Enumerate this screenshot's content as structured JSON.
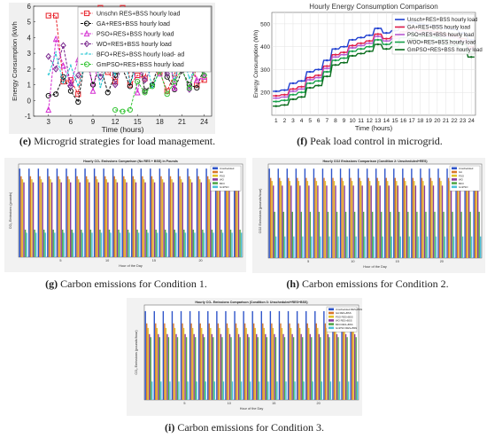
{
  "captions": {
    "e": {
      "tag": "(e)",
      "text": "Microgrid strategies for load management."
    },
    "f": {
      "tag": "(f)",
      "text": "Peak load control in microgrid."
    },
    "g": {
      "tag": "(g)",
      "text": "Carbon emissions for Condition 1."
    },
    "h": {
      "tag": "(h)",
      "text": "Carbon emissions for Condition 2."
    },
    "i": {
      "tag": "(i)",
      "text": "Carbon emissions for Condition 3."
    }
  },
  "chart_data": [
    {
      "id": "e",
      "type": "line",
      "xlabel": "Time (hours)",
      "ylabel": "Energy Consumption (kWh",
      "xlim": [
        1,
        25
      ],
      "ylim": [
        -1,
        6
      ],
      "xticks": [
        3,
        6,
        9,
        12,
        15,
        18,
        21,
        24
      ],
      "yticks": [
        -1,
        0,
        1,
        2,
        3,
        4,
        5,
        6
      ],
      "legend_position": "top-right",
      "x": [
        3,
        4,
        5,
        6,
        7,
        8,
        9,
        10,
        11,
        12,
        13,
        14,
        15,
        16,
        17,
        18,
        19,
        20,
        21,
        22,
        23,
        24
      ],
      "series": [
        {
          "name": "Unschn RES+BSS hourly load",
          "color": "#e8222a",
          "marker": "square",
          "values": [
            5.4,
            5.4,
            1.2,
            1.3,
            0.4,
            4.2,
            5.3,
            5.9,
            1.8,
            1.2,
            5.9,
            1.0,
            1.6,
            1.4,
            4.1,
            1.8,
            0.6,
            1.7,
            2.5,
            4.2,
            1.0,
            1.3
          ]
        },
        {
          "name": "GA+RES+BSS hourly load",
          "color": "#111111",
          "marker": "circle",
          "values": [
            0.3,
            0.4,
            1.5,
            0.6,
            -0.1,
            2.8,
            1.0,
            2.2,
            0.5,
            1.6,
            2.0,
            0.9,
            3.2,
            0.6,
            1.0,
            2.5,
            1.5,
            0.7,
            1.9,
            1.0,
            0.8,
            2.1
          ]
        },
        {
          "name": "PSO+RES+BSS hourly load",
          "color": "#d42fd1",
          "marker": "triangle",
          "values": [
            -0.6,
            3.9,
            2.2,
            1.1,
            2.6,
            3.7,
            0.6,
            3.3,
            4.6,
            5.3,
            4.9,
            3.4,
            0.5,
            3.3,
            2.4,
            1.7,
            3.6,
            0.8,
            4.2,
            2.2,
            1.3,
            1.5
          ]
        },
        {
          "name": "WO+RES+BSS hourly load",
          "color": "#7b2a8f",
          "marker": "diamond",
          "values": [
            2.8,
            2.0,
            3.5,
            0.9,
            1.6,
            2.7,
            2.6,
            1.5,
            3.3,
            1.0,
            2.3,
            2.0,
            2.8,
            1.3,
            2.1,
            3.2,
            1.7,
            2.6,
            2.0,
            0.7,
            2.9,
            1.6
          ]
        },
        {
          "name": "BFO+RES+BSS hourly load- ad",
          "color": "#19c3d0",
          "marker": "star",
          "values": [
            1.6,
            3.0,
            1.1,
            2.2,
            0.9,
            2.4,
            3.9,
            0.8,
            2.6,
            1.6,
            3.3,
            1.1,
            2.2,
            2.9,
            0.8,
            1.9,
            2.7,
            1.3,
            3.0,
            1.4,
            2.1,
            3.3
          ]
        },
        {
          "name": "GmPSO+RES+BSS hourly load",
          "color": "#33c433",
          "marker": "circle",
          "values": [
            null,
            null,
            null,
            null,
            null,
            null,
            null,
            null,
            null,
            -0.6,
            -0.7,
            -0.6,
            1.2,
            0.5,
            0.9,
            1.9,
            0.4,
            1.2,
            2.0,
            0.8,
            2.3,
            1.6
          ]
        }
      ]
    },
    {
      "id": "f",
      "type": "line",
      "title": "Hourly Energy Consumption Comparison",
      "xlabel": "Time (hours)",
      "ylabel": "Energy Consumption (Wh)",
      "xlim": [
        0.5,
        24.5
      ],
      "ylim": [
        100,
        550
      ],
      "xticks": [
        1,
        2,
        3,
        4,
        5,
        6,
        7,
        8,
        9,
        10,
        11,
        12,
        13,
        14,
        15,
        16,
        17,
        18,
        19,
        20,
        21,
        22,
        23,
        24
      ],
      "yticks": [
        200,
        300,
        400,
        500
      ],
      "legend_position": "top-right",
      "grid": true,
      "x": [
        1,
        2,
        3,
        4,
        5,
        6,
        7,
        8,
        9,
        10,
        11,
        12,
        13,
        14,
        15,
        16,
        17,
        18,
        19,
        20,
        21,
        22,
        23,
        24
      ],
      "series": [
        {
          "name": "Unsch+RES+BSS hourly load",
          "color": "#1f3fd0",
          "values": [
            205,
            210,
            240,
            250,
            290,
            300,
            340,
            390,
            400,
            430,
            440,
            450,
            480,
            460,
            470,
            490,
            505,
            500,
            495,
            490,
            480,
            475,
            460,
            430
          ]
        },
        {
          "name": "GA+RES+BSS hourly load",
          "color": "#e01b48",
          "values": [
            185,
            190,
            215,
            225,
            265,
            275,
            315,
            365,
            375,
            405,
            415,
            425,
            455,
            435,
            445,
            465,
            480,
            470,
            470,
            465,
            455,
            450,
            435,
            400
          ]
        },
        {
          "name": "PSO+RES+BSS hourly load",
          "color": "#b75ad1",
          "values": [
            175,
            180,
            205,
            215,
            255,
            265,
            305,
            355,
            365,
            395,
            405,
            415,
            445,
            425,
            435,
            455,
            470,
            460,
            460,
            455,
            445,
            440,
            425,
            390
          ]
        },
        {
          "name": "WOO+RES+BSS hourly load",
          "color": "#16a04a",
          "values": [
            160,
            165,
            190,
            200,
            240,
            250,
            290,
            340,
            350,
            380,
            390,
            400,
            430,
            410,
            420,
            440,
            455,
            445,
            445,
            440,
            430,
            425,
            410,
            375
          ]
        },
        {
          "name": "GmPSO+RES+BSS hourly load",
          "color": "#0b6d1e",
          "values": [
            140,
            145,
            170,
            180,
            220,
            230,
            270,
            320,
            330,
            360,
            370,
            380,
            410,
            390,
            400,
            420,
            435,
            425,
            425,
            420,
            410,
            405,
            390,
            355
          ]
        }
      ]
    },
    {
      "id": "g",
      "type": "bar",
      "title": "Hourly CO₂ Emissions Comparison (No RES + BSS) in Pounds",
      "xlabel": "Hour of the Day",
      "ylabel": "CO₂ Emissions (pounds)",
      "xticks": [
        5,
        10,
        15,
        20
      ],
      "legend_position": "top-right",
      "categories": [
        1,
        2,
        3,
        4,
        5,
        6,
        7,
        8,
        9,
        10,
        11,
        12,
        13,
        14,
        15,
        16,
        17,
        18,
        19,
        20,
        21,
        22,
        23,
        24
      ],
      "series_values": [
        {
          "name": "Unscheduled",
          "color": "#2e54c9",
          "value": 290
        },
        {
          "name": "GA",
          "color": "#d9782a",
          "value": 265
        },
        {
          "name": "PSO",
          "color": "#e3c22a",
          "value": 255
        },
        {
          "name": "WO",
          "color": "#8c3a9c",
          "value": 245
        },
        {
          "name": "BFO",
          "color": "#52a84a",
          "value": 90
        },
        {
          "name": "GmPSO",
          "color": "#4fc2d9",
          "value": 80
        }
      ]
    },
    {
      "id": "h",
      "type": "bar",
      "title": "Hourly CO2 Emissions Comparison (Condition 2: Unscheduled+RES)",
      "xlabel": "Hour of the Day",
      "ylabel": "CO2 Emissions (pounds/hour)",
      "xticks": [
        5,
        10,
        15,
        20
      ],
      "legend_position": "top-right",
      "categories": [
        1,
        2,
        3,
        4,
        5,
        6,
        7,
        8,
        9,
        10,
        11,
        12,
        13,
        14,
        15,
        16,
        17,
        18,
        19,
        20,
        21,
        22,
        23,
        24
      ],
      "series_values": [
        {
          "name": "Unscheduled",
          "color": "#2e54c9",
          "value": 290
        },
        {
          "name": "GA",
          "color": "#d9782a",
          "value": 260
        },
        {
          "name": "PSO",
          "color": "#e3c22a",
          "value": 250
        },
        {
          "name": "WO",
          "color": "#8c3a9c",
          "value": 235
        },
        {
          "name": "BFO",
          "color": "#52a84a",
          "value": 150
        },
        {
          "name": "GmPSO",
          "color": "#4fc2d9",
          "value": 70
        }
      ]
    },
    {
      "id": "i",
      "type": "bar",
      "title": "Hourly CO₂ Emissions Comparison (Condition 3: Unscheduled+RES+BSS)",
      "xlabel": "Hour of the Day",
      "ylabel": "CO₂ Emissions (pounds/hour)",
      "xticks": [
        5,
        10,
        15,
        20
      ],
      "legend_position": "top-right",
      "categories": [
        1,
        2,
        3,
        4,
        5,
        6,
        7,
        8,
        9,
        10,
        11,
        12,
        13,
        14,
        15,
        16,
        17,
        18,
        19,
        20,
        21,
        22,
        23,
        24
      ],
      "series_values": [
        {
          "name": "Unscheduled RES+BSS",
          "color": "#2e54c9",
          "value": 290
        },
        {
          "name": "GA RES+BSS",
          "color": "#d9782a",
          "value": 250
        },
        {
          "name": "PSO RES+BSS",
          "color": "#e3c22a",
          "value": 235
        },
        {
          "name": "WO RES+BSS",
          "color": "#8c3a9c",
          "value": 215
        },
        {
          "name": "BFO RES+BSS",
          "color": "#52a84a",
          "value": 205
        },
        {
          "name": "GmPSO RES+BSS",
          "color": "#4fc2d9",
          "value": 60
        }
      ]
    }
  ]
}
